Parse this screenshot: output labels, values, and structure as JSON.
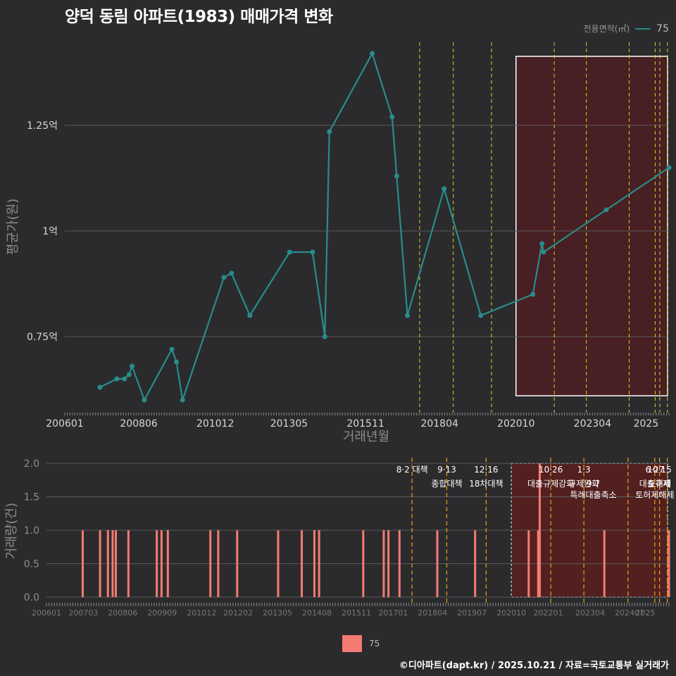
{
  "title": "양덕 동림 아파트(1983) 매매가격 변화",
  "legend": {
    "title": "전용면적(㎡)",
    "series_label": "75",
    "color": "#2a8c8c",
    "bar_color": "#f47b72"
  },
  "credit": "©디아파트(dapt.kr) / 2025.10.21 / 자료=국토교통부 실거래가",
  "chart_data": [
    {
      "type": "line",
      "title": "양덕 동림 아파트(1983) 매매가격 변화",
      "xlabel": "거래년월",
      "ylabel": "평균가(원)",
      "xlim": [
        2006.0,
        2025.75
      ],
      "ylim": [
        0.57,
        1.45
      ],
      "y_ticks": [
        {
          "v": 0.75,
          "label": "0.75억"
        },
        {
          "v": 1.0,
          "label": "1억"
        },
        {
          "v": 1.25,
          "label": "1.25억"
        }
      ],
      "x_ticks": [
        {
          "v": 2006.0,
          "label": "200601"
        },
        {
          "v": 2008.42,
          "label": "200806"
        },
        {
          "v": 2010.92,
          "label": "201012"
        },
        {
          "v": 2013.33,
          "label": "201305"
        },
        {
          "v": 2015.83,
          "label": "201511"
        },
        {
          "v": 2018.25,
          "label": "201804"
        },
        {
          "v": 2020.75,
          "label": "202010"
        },
        {
          "v": 2023.25,
          "label": "202304"
        },
        {
          "v": 2025.0,
          "label": "2025"
        }
      ],
      "series": [
        {
          "name": "75",
          "x": [
            2007.15,
            2007.7,
            2007.95,
            2008.1,
            2008.2,
            2008.6,
            2009.5,
            2009.65,
            2009.85,
            2011.2,
            2011.45,
            2012.05,
            2013.35,
            2014.1,
            2014.5,
            2014.65,
            2016.05,
            2016.7,
            2016.85,
            2017.2,
            2018.4,
            2019.6,
            2021.3,
            2021.6,
            2021.65,
            2023.7,
            2025.75
          ],
          "values": [
            0.63,
            0.65,
            0.65,
            0.66,
            0.68,
            0.6,
            0.72,
            0.69,
            0.6,
            0.89,
            0.9,
            0.8,
            0.95,
            0.95,
            0.75,
            1.235,
            1.42,
            1.27,
            1.13,
            0.8,
            1.1,
            0.8,
            0.85,
            0.97,
            0.95,
            1.05,
            1.15
          ]
        }
      ],
      "policy_lines": [
        2017.6,
        2018.7,
        2019.95,
        2022.0,
        2023.05,
        2024.45,
        2025.3,
        2025.45,
        2025.7
      ],
      "highlight_range": [
        2020.75,
        2025.75
      ]
    },
    {
      "type": "bar",
      "title": "",
      "xlabel": "",
      "ylabel": "거래량(건)",
      "xlim": [
        2006.0,
        2025.75
      ],
      "ylim": [
        0,
        2
      ],
      "y_ticks": [
        {
          "v": 0,
          "label": "0.0"
        },
        {
          "v": 0.5,
          "label": "0.5"
        },
        {
          "v": 1.0,
          "label": "1.0"
        },
        {
          "v": 1.5,
          "label": "1.5"
        },
        {
          "v": 2.0,
          "label": "2.0"
        }
      ],
      "x_ticks": [
        {
          "v": 2006.0,
          "label": "200601"
        },
        {
          "v": 2007.17,
          "label": "200703"
        },
        {
          "v": 2008.42,
          "label": "200806"
        },
        {
          "v": 2009.67,
          "label": "200909"
        },
        {
          "v": 2010.92,
          "label": "201012"
        },
        {
          "v": 2012.08,
          "label": "201202"
        },
        {
          "v": 2013.33,
          "label": "201305"
        },
        {
          "v": 2014.58,
          "label": "201408"
        },
        {
          "v": 2015.83,
          "label": "201511"
        },
        {
          "v": 2017.0,
          "label": "201701"
        },
        {
          "v": 2018.25,
          "label": "201804"
        },
        {
          "v": 2019.5,
          "label": "201907"
        },
        {
          "v": 2020.75,
          "label": "202010"
        },
        {
          "v": 2021.92,
          "label": "202201"
        },
        {
          "v": 2023.25,
          "label": "202304"
        },
        {
          "v": 2024.5,
          "label": "202407"
        },
        {
          "v": 2025.0,
          "label": "2025"
        }
      ],
      "x": [
        2007.15,
        2007.7,
        2007.95,
        2008.1,
        2008.2,
        2008.6,
        2009.5,
        2009.65,
        2009.85,
        2011.2,
        2011.45,
        2012.05,
        2013.35,
        2014.1,
        2014.5,
        2014.65,
        2016.05,
        2016.7,
        2016.85,
        2017.2,
        2018.4,
        2019.6,
        2021.3,
        2021.6,
        2021.65,
        2023.7,
        2025.75
      ],
      "values": [
        1,
        1,
        1,
        1,
        1,
        1,
        1,
        1,
        1,
        1,
        1,
        1,
        1,
        1,
        1,
        1,
        1,
        1,
        1,
        1,
        1,
        1,
        1,
        1,
        2,
        1,
        1
      ],
      "policy_lines": [
        2017.6,
        2018.7,
        2019.95,
        2022.0,
        2023.05,
        2024.45,
        2025.3,
        2025.45,
        2025.7
      ],
      "highlight_range": [
        2020.75,
        2025.75
      ],
      "annotations": [
        {
          "x": 2017.6,
          "line": 0,
          "text": "8·2 대책"
        },
        {
          "x": 2018.7,
          "line": 0,
          "text": "9·13"
        },
        {
          "x": 2018.7,
          "line": 1,
          "text": "종합대책"
        },
        {
          "x": 2019.95,
          "line": 0,
          "text": "12·16"
        },
        {
          "x": 2019.95,
          "line": 1,
          "text": "18차대책"
        },
        {
          "x": 2022.0,
          "line": 0,
          "text": "10·26"
        },
        {
          "x": 2022.0,
          "line": 1,
          "text": "대출규제강화"
        },
        {
          "x": 2023.05,
          "line": 0,
          "text": "1·3"
        },
        {
          "x": 2023.05,
          "line": 1,
          "text": "규제완화"
        },
        {
          "x": 2023.35,
          "line": 1,
          "text": "9·7"
        },
        {
          "x": 2023.35,
          "line": 2,
          "text": "특례대출축소"
        },
        {
          "x": 2025.3,
          "line": 0,
          "text": "6·27"
        },
        {
          "x": 2025.45,
          "line": 0,
          "text": "10·15"
        },
        {
          "x": 2025.3,
          "line": 1,
          "text": "대출규제"
        },
        {
          "x": 2025.45,
          "line": 1,
          "text": "토허제"
        },
        {
          "x": 2025.3,
          "line": 2,
          "text": "토허제해제"
        }
      ]
    }
  ]
}
